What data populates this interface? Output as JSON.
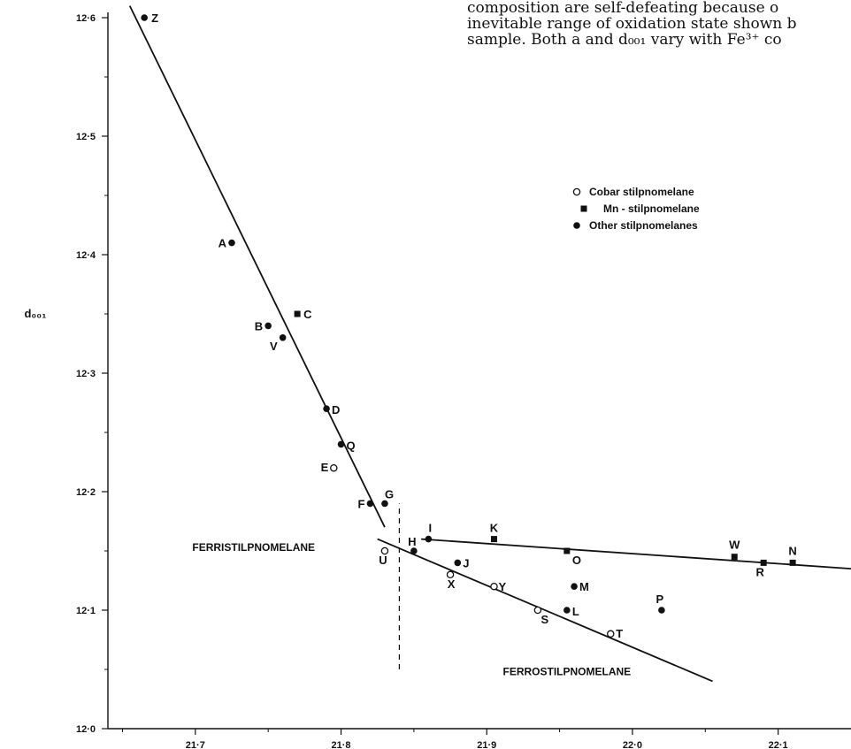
{
  "page_text": {
    "lines": [
      "composition are self-defeating because o",
      "inevitable range of oxidation state shown b",
      "sample. Both a and d₀₀₁ vary with Fe³⁺ co"
    ]
  },
  "chart_data": {
    "type": "scatter",
    "title": "",
    "xlabel": "",
    "ylabel": "d₀₀₁",
    "xlim": [
      21.64,
      22.15
    ],
    "ylim": [
      12.0,
      12.6
    ],
    "x_ticks": [
      "21·7",
      "21·8",
      "21·9",
      "22·0",
      "22·1"
    ],
    "x_tick_values": [
      21.7,
      21.8,
      21.9,
      22.0,
      22.1
    ],
    "y_ticks": [
      "12·0",
      "12·1",
      "12·2",
      "12·3",
      "12·4",
      "12·5",
      "12·6"
    ],
    "y_tick_values": [
      12.0,
      12.1,
      12.2,
      12.3,
      12.4,
      12.5,
      12.6
    ],
    "grid": false,
    "legend_position": "upper-right",
    "legend": [
      {
        "name": "Cobar stilpnomelane",
        "marker": "open-circle"
      },
      {
        "name": "Mn - stilpnomelane",
        "marker": "square"
      },
      {
        "name": "Other stilpnomelanes",
        "marker": "filled-circle"
      }
    ],
    "series": [
      {
        "name": "Cobar stilpnomelane",
        "marker": "open-circle",
        "points": [
          {
            "label": "E",
            "x": 21.795,
            "y": 12.22
          },
          {
            "label": "U",
            "x": 21.83,
            "y": 12.15
          },
          {
            "label": "X",
            "x": 21.875,
            "y": 12.13
          },
          {
            "label": "Y",
            "x": 21.905,
            "y": 12.12
          },
          {
            "label": "S",
            "x": 21.935,
            "y": 12.1
          },
          {
            "label": "T",
            "x": 21.985,
            "y": 12.08
          }
        ]
      },
      {
        "name": "Mn - stilpnomelane",
        "marker": "square",
        "points": [
          {
            "label": "C",
            "x": 21.77,
            "y": 12.35
          },
          {
            "label": "K",
            "x": 21.905,
            "y": 12.16
          },
          {
            "label": "O",
            "x": 21.955,
            "y": 12.15
          },
          {
            "label": "W",
            "x": 22.07,
            "y": 12.145
          },
          {
            "label": "R",
            "x": 22.09,
            "y": 12.14
          },
          {
            "label": "N",
            "x": 22.11,
            "y": 12.14
          }
        ]
      },
      {
        "name": "Other stilpnomelanes",
        "marker": "filled-circle",
        "points": [
          {
            "label": "Z",
            "x": 21.665,
            "y": 12.6
          },
          {
            "label": "A",
            "x": 21.725,
            "y": 12.41
          },
          {
            "label": "B",
            "x": 21.75,
            "y": 12.34
          },
          {
            "label": "V",
            "x": 21.76,
            "y": 12.33
          },
          {
            "label": "D",
            "x": 21.79,
            "y": 12.27
          },
          {
            "label": "Q",
            "x": 21.8,
            "y": 12.24
          },
          {
            "label": "F",
            "x": 21.82,
            "y": 12.19
          },
          {
            "label": "G",
            "x": 21.83,
            "y": 12.19
          },
          {
            "label": "H",
            "x": 21.85,
            "y": 12.15
          },
          {
            "label": "I",
            "x": 21.86,
            "y": 12.16
          },
          {
            "label": "J",
            "x": 21.88,
            "y": 12.14
          },
          {
            "label": "M",
            "x": 21.96,
            "y": 12.12
          },
          {
            "label": "L",
            "x": 21.955,
            "y": 12.1
          },
          {
            "label": "P",
            "x": 22.02,
            "y": 12.1
          }
        ]
      }
    ],
    "lines": [
      {
        "name": "ferri-trend",
        "style": "solid",
        "points": [
          [
            21.655,
            12.61
          ],
          [
            21.83,
            12.17
          ]
        ]
      },
      {
        "name": "ferro-trend",
        "style": "solid",
        "points": [
          [
            21.825,
            12.16
          ],
          [
            22.055,
            12.04
          ]
        ]
      },
      {
        "name": "mn-trend",
        "style": "solid",
        "points": [
          [
            21.855,
            12.16
          ],
          [
            22.15,
            12.135
          ]
        ]
      },
      {
        "name": "boundary",
        "style": "dashed",
        "points": [
          [
            21.84,
            12.05
          ],
          [
            21.84,
            12.19
          ]
        ]
      }
    ],
    "annotations": [
      {
        "text": "FERRISTILPNOMELANE",
        "x": 21.74,
        "y": 12.15
      },
      {
        "text": "FERROSTILPNOMELANE",
        "x": 21.955,
        "y": 12.045
      }
    ]
  }
}
